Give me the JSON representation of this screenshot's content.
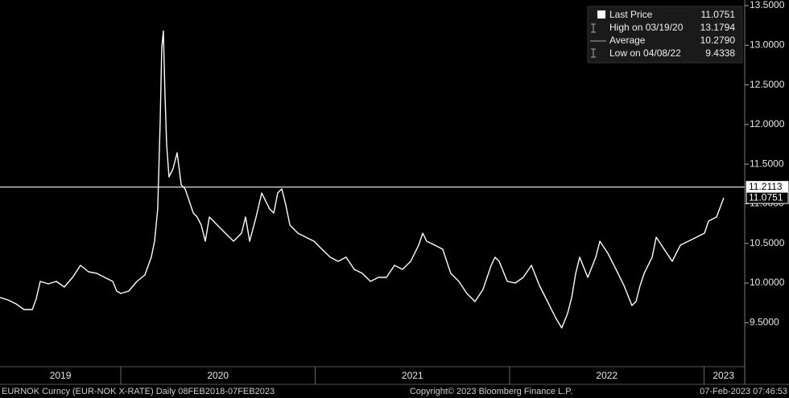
{
  "chart_data": {
    "type": "line",
    "x": [
      2019.379,
      2019.42,
      2019.462,
      2019.503,
      2019.545,
      2019.565,
      2019.586,
      2019.627,
      2019.669,
      2019.71,
      2019.752,
      2019.793,
      2019.834,
      2019.876,
      2019.917,
      2019.959,
      2019.979,
      2020.0,
      2020.041,
      2020.083,
      2020.124,
      2020.157,
      2020.174,
      2020.19,
      2020.203,
      2020.211,
      2020.219,
      2020.228,
      2020.236,
      2020.248,
      2020.269,
      2020.29,
      2020.311,
      2020.331,
      2020.352,
      2020.373,
      2020.393,
      2020.414,
      2020.435,
      2020.456,
      2020.497,
      2020.538,
      2020.58,
      2020.621,
      2020.642,
      2020.663,
      2020.696,
      2020.725,
      2020.745,
      2020.766,
      2020.787,
      2020.807,
      2020.828,
      2020.849,
      2020.87,
      2020.911,
      2020.952,
      2020.994,
      2021.035,
      2021.077,
      2021.118,
      2021.159,
      2021.201,
      2021.242,
      2021.284,
      2021.325,
      2021.366,
      2021.408,
      2021.449,
      2021.491,
      2021.532,
      2021.553,
      2021.573,
      2021.615,
      2021.656,
      2021.697,
      2021.739,
      2021.78,
      2021.822,
      2021.863,
      2021.905,
      2021.925,
      2021.946,
      2021.988,
      2022.029,
      2022.07,
      2022.112,
      2022.153,
      2022.195,
      2022.236,
      2022.268,
      2022.298,
      2022.319,
      2022.34,
      2022.36,
      2022.402,
      2022.443,
      2022.464,
      2022.505,
      2022.547,
      2022.588,
      2022.629,
      2022.65,
      2022.671,
      2022.692,
      2022.733,
      2022.754,
      2022.795,
      2022.836,
      2022.878,
      2022.919,
      2022.961,
      2023.002,
      2023.023,
      2023.064,
      2023.101
    ],
    "series": [
      {
        "name": "Last Price",
        "color": "#ffffff",
        "values": [
          9.818,
          9.788,
          9.737,
          9.666,
          9.666,
          9.798,
          10.021,
          9.991,
          10.021,
          9.95,
          10.072,
          10.224,
          10.143,
          10.123,
          10.072,
          10.021,
          9.899,
          9.869,
          9.899,
          10.021,
          10.102,
          10.326,
          10.528,
          10.934,
          12.05,
          12.962,
          13.179,
          12.354,
          11.745,
          11.34,
          11.441,
          11.644,
          11.238,
          11.188,
          11.036,
          10.883,
          10.833,
          10.731,
          10.528,
          10.833,
          10.731,
          10.63,
          10.528,
          10.63,
          10.833,
          10.528,
          10.833,
          11.137,
          11.036,
          10.934,
          10.883,
          11.137,
          11.188,
          10.985,
          10.731,
          10.63,
          10.579,
          10.528,
          10.427,
          10.326,
          10.275,
          10.326,
          10.173,
          10.123,
          10.021,
          10.072,
          10.072,
          10.224,
          10.173,
          10.275,
          10.478,
          10.63,
          10.528,
          10.478,
          10.427,
          10.123,
          10.021,
          9.869,
          9.768,
          9.92,
          10.224,
          10.326,
          10.275,
          10.021,
          10.001,
          10.072,
          10.224,
          9.97,
          9.768,
          9.565,
          9.434,
          9.616,
          9.818,
          10.123,
          10.326,
          10.072,
          10.326,
          10.528,
          10.376,
          10.173,
          9.97,
          9.717,
          9.768,
          9.97,
          10.123,
          10.326,
          10.579,
          10.427,
          10.275,
          10.478,
          10.528,
          10.579,
          10.63,
          10.782,
          10.833,
          11.075
        ]
      }
    ],
    "xlim": [
      2019.379,
      2023.209
    ],
    "xticks": [
      {
        "value": 2019.69,
        "label": "2019"
      },
      {
        "value": 2020.5,
        "label": "2020"
      },
      {
        "value": 2021.5,
        "label": "2021"
      },
      {
        "value": 2022.5,
        "label": "2022"
      },
      {
        "value": 2023.1,
        "label": "2023"
      }
    ],
    "x_separators": [
      2020,
      2021,
      2022,
      2023
    ],
    "ylim": [
      8.95,
      13.5
    ],
    "yticks": [
      {
        "value": 9.5,
        "label": "9.5000"
      },
      {
        "value": 10,
        "label": "10.0000"
      },
      {
        "value": 10.5,
        "label": "10.5000"
      },
      {
        "value": 11,
        "label": "11.0000"
      },
      {
        "value": 11.5,
        "label": "11.5000"
      },
      {
        "value": 12,
        "label": "12.0000"
      },
      {
        "value": 12.5,
        "label": "12.5000"
      },
      {
        "value": 13,
        "label": "13.0000"
      },
      {
        "value": 13.5,
        "label": "13.5000"
      }
    ],
    "hline": 11.2113,
    "last_value": 11.0751,
    "stats": [
      {
        "name": "Last Price",
        "value": "11.0751"
      },
      {
        "name": "High on 03/19/20",
        "value": "13.1794"
      },
      {
        "name": "Average",
        "value": "10.2790"
      },
      {
        "name": "Low on 04/08/22",
        "value": "9.4338"
      }
    ],
    "footer": {
      "left": "EURNOK Curncy (EUR-NOK X-RATE)  Daily 08FEB2018-07FEB2023",
      "center": "Copyright© 2023 Bloomberg Finance L.P.",
      "right": "07-Feb-2023 07:46:53"
    }
  }
}
